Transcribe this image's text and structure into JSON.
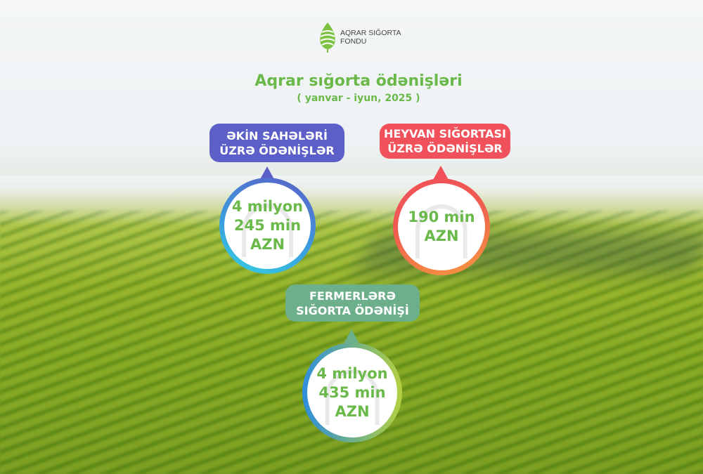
{
  "logo": {
    "line1": "AQRAR SIĞORTA",
    "line2": "FONDU"
  },
  "title": "Aqrar sığorta ödənişləri",
  "subtitle": "( yanvar - iyun, 2025 )",
  "colors": {
    "green": "#6ab94a",
    "purple": "#5b5fc7",
    "red": "#f0515a",
    "teal": "#6daf8a"
  },
  "cards": [
    {
      "label_line1": "ƏKİN SAHƏLƏRİ",
      "label_line2": "ÜZRƏ ÖDƏNİŞLƏR",
      "value_line1": "4 milyon",
      "value_line2": "245 min",
      "value_line3": "AZN"
    },
    {
      "label_line1": "HEYVAN SIĞORTASI",
      "label_line2": "ÜZRƏ ÖDƏNİŞLƏR",
      "value_line1": "190 min",
      "value_line2": "AZN"
    },
    {
      "label_line1": "FERMERLƏRƏ",
      "label_line2": "SIĞORTA ÖDƏNİŞİ",
      "value_line1": "4 milyon",
      "value_line2": "435 min",
      "value_line3": "AZN"
    }
  ]
}
